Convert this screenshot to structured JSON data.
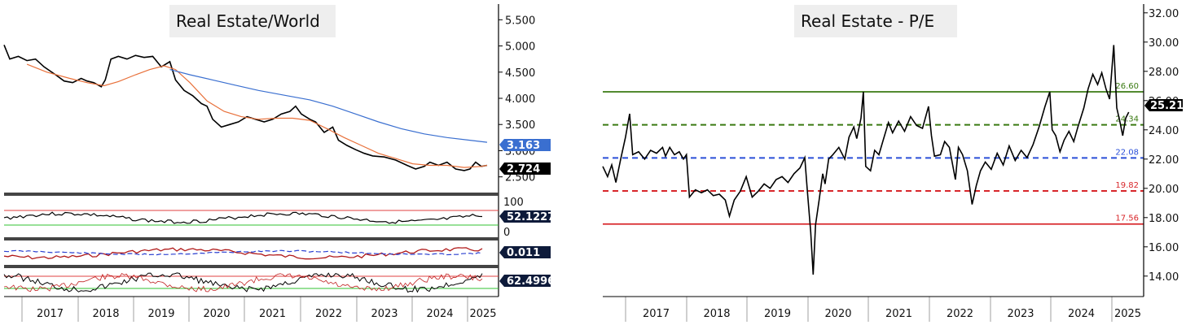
{
  "chart_data": [
    {
      "type": "line",
      "title": "Real Estate/World",
      "x_labels": [
        "2017",
        "2018",
        "2019",
        "2020",
        "2021",
        "2022",
        "2023",
        "2024",
        "2025"
      ],
      "ylim": [
        2.2,
        5.8
      ],
      "y_ticks": [
        {
          "v": 2.5,
          "label": "2.500"
        },
        {
          "v": 3.0,
          "label": "3.000"
        },
        {
          "v": 3.5,
          "label": "3.500"
        },
        {
          "v": 4.0,
          "label": "4.000"
        },
        {
          "v": 4.5,
          "label": "4.500"
        },
        {
          "v": 5.0,
          "label": "5.000"
        },
        {
          "v": 5.5,
          "label": "5.500"
        }
      ],
      "series": [
        {
          "color": "#000000",
          "values": [
            [
              2016.55,
              5.02
            ],
            [
              2016.65,
              4.75
            ],
            [
              2016.8,
              4.8
            ],
            [
              2016.95,
              4.72
            ],
            [
              2017.1,
              4.75
            ],
            [
              2017.25,
              4.6
            ],
            [
              2017.45,
              4.45
            ],
            [
              2017.6,
              4.33
            ],
            [
              2017.75,
              4.3
            ],
            [
              2017.9,
              4.38
            ],
            [
              2018.0,
              4.33
            ],
            [
              2018.12,
              4.3
            ],
            [
              2018.25,
              4.22
            ],
            [
              2018.32,
              4.35
            ],
            [
              2018.42,
              4.75
            ],
            [
              2018.55,
              4.8
            ],
            [
              2018.7,
              4.75
            ],
            [
              2018.85,
              4.82
            ],
            [
              2019.0,
              4.78
            ],
            [
              2019.15,
              4.8
            ],
            [
              2019.3,
              4.6
            ],
            [
              2019.45,
              4.7
            ],
            [
              2019.55,
              4.35
            ],
            [
              2019.7,
              4.15
            ],
            [
              2019.85,
              4.05
            ],
            [
              2020.0,
              3.9
            ],
            [
              2020.1,
              3.85
            ],
            [
              2020.2,
              3.6
            ],
            [
              2020.35,
              3.45
            ],
            [
              2020.5,
              3.5
            ],
            [
              2020.65,
              3.55
            ],
            [
              2020.8,
              3.65
            ],
            [
              2020.95,
              3.6
            ],
            [
              2021.1,
              3.55
            ],
            [
              2021.25,
              3.6
            ],
            [
              2021.4,
              3.7
            ],
            [
              2021.55,
              3.75
            ],
            [
              2021.65,
              3.85
            ],
            [
              2021.75,
              3.7
            ],
            [
              2021.9,
              3.6
            ],
            [
              2022.0,
              3.55
            ],
            [
              2022.15,
              3.35
            ],
            [
              2022.3,
              3.45
            ],
            [
              2022.4,
              3.2
            ],
            [
              2022.55,
              3.1
            ],
            [
              2022.7,
              3.02
            ],
            [
              2022.85,
              2.95
            ],
            [
              2023.0,
              2.9
            ],
            [
              2023.2,
              2.88
            ],
            [
              2023.4,
              2.82
            ],
            [
              2023.6,
              2.72
            ],
            [
              2023.75,
              2.65
            ],
            [
              2023.9,
              2.7
            ],
            [
              2024.0,
              2.78
            ],
            [
              2024.15,
              2.72
            ],
            [
              2024.3,
              2.78
            ],
            [
              2024.45,
              2.65
            ],
            [
              2024.6,
              2.62
            ],
            [
              2024.7,
              2.65
            ],
            [
              2024.8,
              2.78
            ],
            [
              2024.9,
              2.7
            ],
            [
              2025.0,
              2.72
            ]
          ]
        },
        {
          "color": "#e8703a",
          "values": [
            [
              2016.95,
              4.65
            ],
            [
              2017.3,
              4.5
            ],
            [
              2017.7,
              4.38
            ],
            [
              2018.0,
              4.3
            ],
            [
              2018.3,
              4.24
            ],
            [
              2018.55,
              4.32
            ],
            [
              2018.85,
              4.45
            ],
            [
              2019.1,
              4.55
            ],
            [
              2019.35,
              4.62
            ],
            [
              2019.55,
              4.55
            ],
            [
              2019.8,
              4.3
            ],
            [
              2020.1,
              3.95
            ],
            [
              2020.4,
              3.75
            ],
            [
              2020.7,
              3.65
            ],
            [
              2021.0,
              3.6
            ],
            [
              2021.3,
              3.62
            ],
            [
              2021.6,
              3.62
            ],
            [
              2021.9,
              3.58
            ],
            [
              2022.2,
              3.42
            ],
            [
              2022.5,
              3.25
            ],
            [
              2022.8,
              3.1
            ],
            [
              2023.1,
              2.95
            ],
            [
              2023.4,
              2.85
            ],
            [
              2023.7,
              2.75
            ],
            [
              2024.0,
              2.72
            ],
            [
              2024.3,
              2.72
            ],
            [
              2024.6,
              2.68
            ],
            [
              2024.9,
              2.7
            ],
            [
              2025.0,
              2.72
            ]
          ]
        },
        {
          "color": "#3a6fd0",
          "values": [
            [
              2019.45,
              4.55
            ],
            [
              2019.8,
              4.45
            ],
            [
              2020.2,
              4.35
            ],
            [
              2020.6,
              4.25
            ],
            [
              2021.0,
              4.15
            ],
            [
              2021.5,
              4.05
            ],
            [
              2021.9,
              3.97
            ],
            [
              2022.3,
              3.85
            ],
            [
              2022.7,
              3.7
            ],
            [
              2023.1,
              3.55
            ],
            [
              2023.5,
              3.42
            ],
            [
              2023.9,
              3.32
            ],
            [
              2024.3,
              3.25
            ],
            [
              2024.7,
              3.2
            ],
            [
              2025.0,
              3.16
            ]
          ]
        }
      ],
      "last_values": [
        {
          "label": "3.163",
          "bg": "#3a6fd0"
        },
        {
          "label": "2.724",
          "bg": "#000000"
        }
      ],
      "subpanels": [
        {
          "label": "100",
          "label2": "0",
          "value": "52.1227",
          "bg": "#0d1a3a"
        },
        {
          "value": "0.011",
          "bg": "#0d1a3a"
        },
        {
          "value": "62.4996",
          "bg": "#0d1a3a"
        }
      ]
    },
    {
      "type": "line",
      "title": "Real Estate - P/E",
      "x_labels": [
        "2017",
        "2018",
        "2019",
        "2020",
        "2021",
        "2022",
        "2023",
        "2024",
        "2025"
      ],
      "ylim": [
        12.6,
        32.6
      ],
      "y_ticks": [
        {
          "v": 14,
          "label": "14.00"
        },
        {
          "v": 16,
          "label": "16.00"
        },
        {
          "v": 18,
          "label": "18.00"
        },
        {
          "v": 20,
          "label": "20.00"
        },
        {
          "v": 22,
          "label": "22.00"
        },
        {
          "v": 24,
          "label": "24.00"
        },
        {
          "v": 26,
          "label": "26.00"
        },
        {
          "v": 28,
          "label": "28.00"
        },
        {
          "v": 30,
          "label": "30.00"
        },
        {
          "v": 32,
          "label": "32.00"
        }
      ],
      "levels": [
        {
          "v": 26.6,
          "label": "26.60",
          "color": "#3a7a12",
          "dash": false
        },
        {
          "v": 24.34,
          "label": "24.34",
          "color": "#3a7a12",
          "dash": true
        },
        {
          "v": 22.08,
          "label": "22.08",
          "color": "#2a4fd8",
          "dash": true
        },
        {
          "v": 19.82,
          "label": "19.82",
          "color": "#d8262a",
          "dash": true
        },
        {
          "v": 17.56,
          "label": "17.56",
          "color": "#d8262a",
          "dash": false
        }
      ],
      "series": [
        {
          "color": "#000000",
          "values": [
            [
              2016.0,
              21.5
            ],
            [
              2016.08,
              20.8
            ],
            [
              2016.15,
              21.6
            ],
            [
              2016.22,
              20.4
            ],
            [
              2016.3,
              22.0
            ],
            [
              2016.38,
              23.5
            ],
            [
              2016.45,
              25.1
            ],
            [
              2016.5,
              22.3
            ],
            [
              2016.6,
              22.5
            ],
            [
              2016.7,
              22.0
            ],
            [
              2016.8,
              22.6
            ],
            [
              2016.9,
              22.4
            ],
            [
              2017.0,
              22.8
            ],
            [
              2017.05,
              22.2
            ],
            [
              2017.12,
              22.8
            ],
            [
              2017.2,
              22.3
            ],
            [
              2017.28,
              22.5
            ],
            [
              2017.35,
              22.0
            ],
            [
              2017.4,
              22.3
            ],
            [
              2017.45,
              19.4
            ],
            [
              2017.55,
              19.9
            ],
            [
              2017.65,
              19.7
            ],
            [
              2017.75,
              19.9
            ],
            [
              2017.85,
              19.5
            ],
            [
              2017.95,
              19.6
            ],
            [
              2018.05,
              19.2
            ],
            [
              2018.12,
              18.1
            ],
            [
              2018.2,
              19.2
            ],
            [
              2018.3,
              19.8
            ],
            [
              2018.4,
              20.8
            ],
            [
              2018.5,
              19.4
            ],
            [
              2018.6,
              19.8
            ],
            [
              2018.7,
              20.3
            ],
            [
              2018.8,
              20.0
            ],
            [
              2018.9,
              20.6
            ],
            [
              2019.0,
              20.8
            ],
            [
              2019.1,
              20.4
            ],
            [
              2019.2,
              21.0
            ],
            [
              2019.3,
              21.4
            ],
            [
              2019.38,
              22.1
            ],
            [
              2019.42,
              20.0
            ],
            [
              2019.48,
              17.0
            ],
            [
              2019.52,
              14.1
            ],
            [
              2019.56,
              17.5
            ],
            [
              2019.62,
              19.2
            ],
            [
              2019.68,
              21.0
            ],
            [
              2019.72,
              20.3
            ],
            [
              2019.78,
              22.0
            ],
            [
              2019.85,
              22.3
            ],
            [
              2019.95,
              22.8
            ],
            [
              2020.05,
              22.0
            ],
            [
              2020.12,
              23.5
            ],
            [
              2020.2,
              24.2
            ],
            [
              2020.25,
              23.4
            ],
            [
              2020.32,
              24.8
            ],
            [
              2020.36,
              26.6
            ],
            [
              2020.4,
              21.5
            ],
            [
              2020.48,
              21.2
            ],
            [
              2020.55,
              22.6
            ],
            [
              2020.62,
              22.3
            ],
            [
              2020.7,
              23.4
            ],
            [
              2020.78,
              24.5
            ],
            [
              2020.85,
              23.8
            ],
            [
              2020.95,
              24.6
            ],
            [
              2021.05,
              23.9
            ],
            [
              2021.15,
              24.9
            ],
            [
              2021.25,
              24.3
            ],
            [
              2021.35,
              24.1
            ],
            [
              2021.45,
              25.6
            ],
            [
              2021.5,
              23.6
            ],
            [
              2021.55,
              22.2
            ],
            [
              2021.65,
              22.3
            ],
            [
              2021.72,
              23.2
            ],
            [
              2021.8,
              22.8
            ],
            [
              2021.9,
              20.6
            ],
            [
              2021.95,
              22.8
            ],
            [
              2022.02,
              22.3
            ],
            [
              2022.1,
              21.2
            ],
            [
              2022.18,
              18.9
            ],
            [
              2022.25,
              20.2
            ],
            [
              2022.32,
              21.2
            ],
            [
              2022.4,
              21.8
            ],
            [
              2022.5,
              21.3
            ],
            [
              2022.6,
              22.4
            ],
            [
              2022.7,
              21.6
            ],
            [
              2022.8,
              22.9
            ],
            [
              2022.9,
              21.9
            ],
            [
              2023.0,
              22.6
            ],
            [
              2023.1,
              22.1
            ],
            [
              2023.2,
              23.0
            ],
            [
              2023.3,
              24.2
            ],
            [
              2023.4,
              25.6
            ],
            [
              2023.48,
              26.6
            ],
            [
              2023.52,
              24.0
            ],
            [
              2023.58,
              23.6
            ],
            [
              2023.65,
              22.5
            ],
            [
              2023.72,
              23.3
            ],
            [
              2023.8,
              23.9
            ],
            [
              2023.88,
              23.2
            ],
            [
              2023.95,
              24.2
            ],
            [
              2024.05,
              25.5
            ],
            [
              2024.12,
              26.8
            ],
            [
              2024.2,
              27.8
            ],
            [
              2024.28,
              27.1
            ],
            [
              2024.35,
              27.9
            ],
            [
              2024.42,
              26.8
            ],
            [
              2024.48,
              26.1
            ],
            [
              2024.55,
              29.8
            ],
            [
              2024.6,
              25.5
            ],
            [
              2024.65,
              24.6
            ],
            [
              2024.7,
              23.6
            ],
            [
              2024.75,
              24.8
            ],
            [
              2024.8,
              25.21
            ]
          ]
        }
      ],
      "last_values": [
        {
          "label": "25.21",
          "bg": "#000000"
        }
      ]
    }
  ]
}
